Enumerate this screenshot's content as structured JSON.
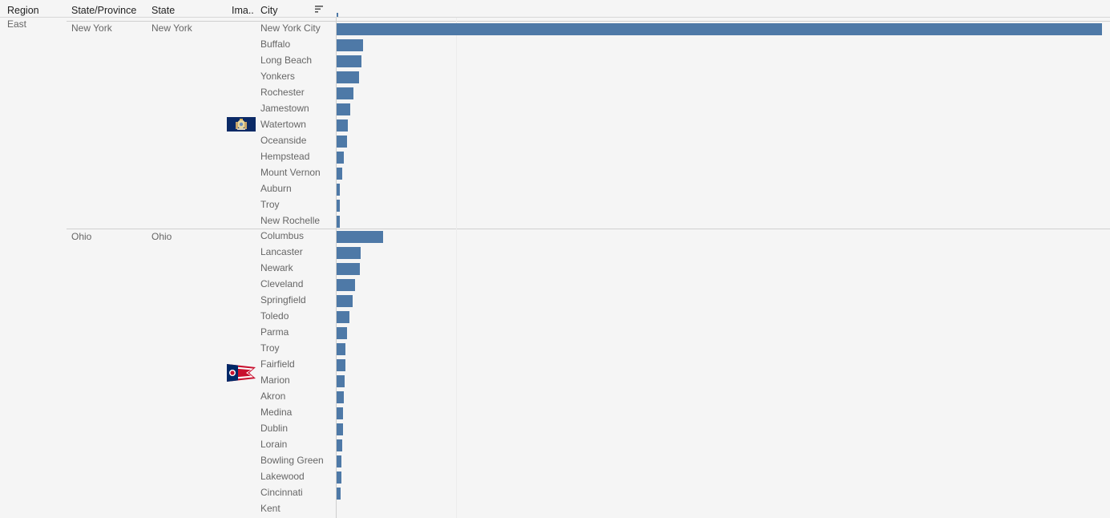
{
  "headers": {
    "region": "Region",
    "state_province": "State/Province",
    "state": "State",
    "image": "Ima..",
    "city": "City"
  },
  "icons": {
    "sort": "sort-descending-icon"
  },
  "colors": {
    "bar": "#4e79a7",
    "background": "#f5f5f5"
  },
  "chart_data": {
    "type": "bar",
    "orientation": "horizontal",
    "region": "East",
    "groups": [
      {
        "state_province": "New York",
        "state": "New York",
        "flag": "new-york-flag",
        "cities": [
          "New York City",
          "Buffalo",
          "Long Beach",
          "Yonkers",
          "Rochester",
          "Jamestown",
          "Watertown",
          "Oceanside",
          "Hempstead",
          "Mount Vernon",
          "Auburn",
          "Troy",
          "New Rochelle"
        ],
        "values": [
          957,
          33,
          31,
          28,
          21,
          17,
          14,
          13,
          9,
          7,
          4,
          4,
          4
        ]
      },
      {
        "state_province": "Ohio",
        "state": "Ohio",
        "flag": "ohio-flag",
        "cities": [
          "Columbus",
          "Lancaster",
          "Newark",
          "Cleveland",
          "Springfield",
          "Toledo",
          "Parma",
          "Troy",
          "Fairfield",
          "Marion",
          "Akron",
          "Medina",
          "Dublin",
          "Lorain",
          "Bowling Green",
          "Lakewood",
          "Cincinnati",
          "Kent"
        ],
        "values": [
          58,
          30,
          29,
          23,
          20,
          16,
          13,
          11,
          11,
          10,
          9,
          8,
          8,
          7,
          6,
          6,
          5,
          0
        ]
      }
    ],
    "xlim": [
      0,
      960
    ]
  }
}
